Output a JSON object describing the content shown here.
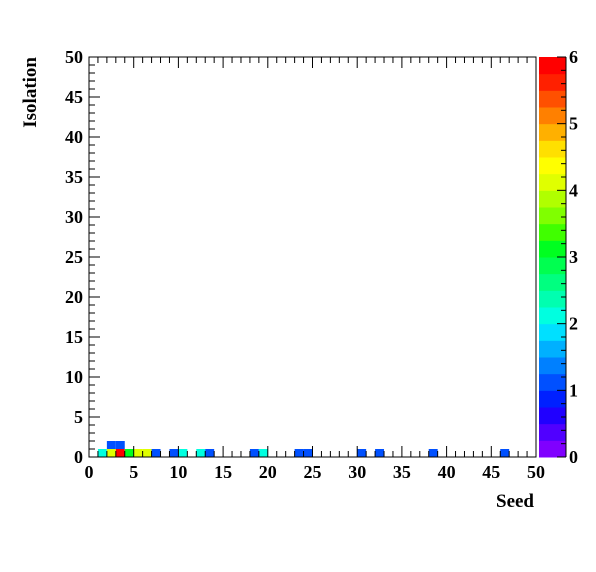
{
  "chart_data": {
    "type": "heatmap",
    "title": "",
    "xlabel": "Seed",
    "ylabel": "Isolation",
    "xlim": [
      0,
      50
    ],
    "ylim": [
      0,
      50
    ],
    "bin_width": 1,
    "x_ticks": [
      "0",
      "5",
      "10",
      "15",
      "20",
      "25",
      "30",
      "35",
      "40",
      "45",
      "50"
    ],
    "y_ticks": [
      "0",
      "5",
      "10",
      "15",
      "20",
      "25",
      "30",
      "35",
      "40",
      "45",
      "50"
    ],
    "colorbar": {
      "min": 0,
      "max": 6,
      "ticks": [
        "0",
        "1",
        "2",
        "3",
        "4",
        "5",
        "6"
      ],
      "palette": [
        "#8000ff",
        "#5000ff",
        "#2000ff",
        "#0020ff",
        "#0050ff",
        "#0080ff",
        "#00b0ff",
        "#00e0ff",
        "#00ffe0",
        "#00ffb0",
        "#00ff80",
        "#00ff50",
        "#00ff20",
        "#40ff00",
        "#80ff00",
        "#b0ff00",
        "#e0ff00",
        "#ffff00",
        "#ffe000",
        "#ffb000",
        "#ff8000",
        "#ff5000",
        "#ff2000",
        "#ff0000"
      ]
    },
    "bins": [
      {
        "x": 1,
        "y": 0,
        "value": 2
      },
      {
        "x": 2,
        "y": 0,
        "value": 4
      },
      {
        "x": 2,
        "y": 1,
        "value": 1
      },
      {
        "x": 3,
        "y": 0,
        "value": 6
      },
      {
        "x": 3,
        "y": 1,
        "value": 1
      },
      {
        "x": 4,
        "y": 0,
        "value": 3
      },
      {
        "x": 5,
        "y": 0,
        "value": 4
      },
      {
        "x": 6,
        "y": 0,
        "value": 4
      },
      {
        "x": 7,
        "y": 0,
        "value": 1
      },
      {
        "x": 9,
        "y": 0,
        "value": 1
      },
      {
        "x": 10,
        "y": 0,
        "value": 2
      },
      {
        "x": 12,
        "y": 0,
        "value": 2
      },
      {
        "x": 13,
        "y": 0,
        "value": 1
      },
      {
        "x": 18,
        "y": 0,
        "value": 1
      },
      {
        "x": 19,
        "y": 0,
        "value": 2
      },
      {
        "x": 23,
        "y": 0,
        "value": 1
      },
      {
        "x": 24,
        "y": 0,
        "value": 1
      },
      {
        "x": 30,
        "y": 0,
        "value": 1
      },
      {
        "x": 32,
        "y": 0,
        "value": 1
      },
      {
        "x": 38,
        "y": 0,
        "value": 1
      },
      {
        "x": 46,
        "y": 0,
        "value": 1
      }
    ]
  }
}
